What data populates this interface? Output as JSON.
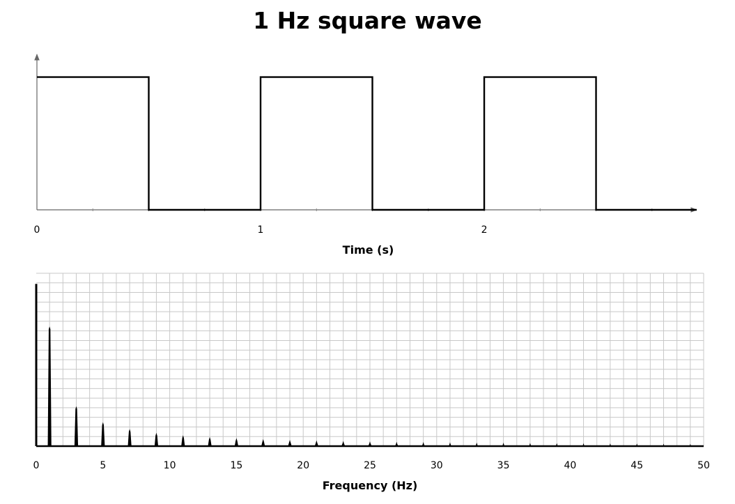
{
  "title": "1 Hz square wave",
  "chart_data": [
    {
      "type": "line",
      "xlabel": "Time (s)",
      "ylabel": "",
      "xlim": [
        0,
        2.95
      ],
      "ylim": [
        0,
        1.15
      ],
      "grid": false,
      "x_tick_labels": [
        {
          "value": 0,
          "label": "0"
        },
        {
          "value": 1,
          "label": "1"
        },
        {
          "value": 2,
          "label": "2"
        }
      ],
      "x": [
        0,
        0.5,
        0.5,
        1,
        1,
        1.5,
        1.5,
        2,
        2,
        2.5,
        2.5,
        2.95
      ],
      "y": [
        1,
        1,
        0,
        0,
        1,
        1,
        0,
        0,
        1,
        1,
        0,
        0
      ]
    },
    {
      "type": "bar",
      "xlabel": "Frequency (Hz)",
      "ylabel": "",
      "xlim": [
        0,
        50
      ],
      "ylim": [
        0,
        1.3
      ],
      "grid": true,
      "x_tick_labels": [
        "0",
        "5",
        "10",
        "15",
        "20",
        "25",
        "30",
        "35",
        "40",
        "45",
        "50"
      ],
      "x": [
        1,
        3,
        5,
        7,
        9,
        11,
        13,
        15,
        17,
        19,
        21,
        23,
        25,
        27,
        29,
        31,
        33,
        35,
        37,
        39,
        41,
        43,
        45,
        47,
        49
      ],
      "values": [
        0.9,
        0.3,
        0.18,
        0.129,
        0.1,
        0.082,
        0.069,
        0.06,
        0.053,
        0.047,
        0.043,
        0.039,
        0.036,
        0.033,
        0.031,
        0.029,
        0.027,
        0.026,
        0.024,
        0.023,
        0.022,
        0.021,
        0.02,
        0.019,
        0.018
      ],
      "dc_value": 1.22
    }
  ]
}
